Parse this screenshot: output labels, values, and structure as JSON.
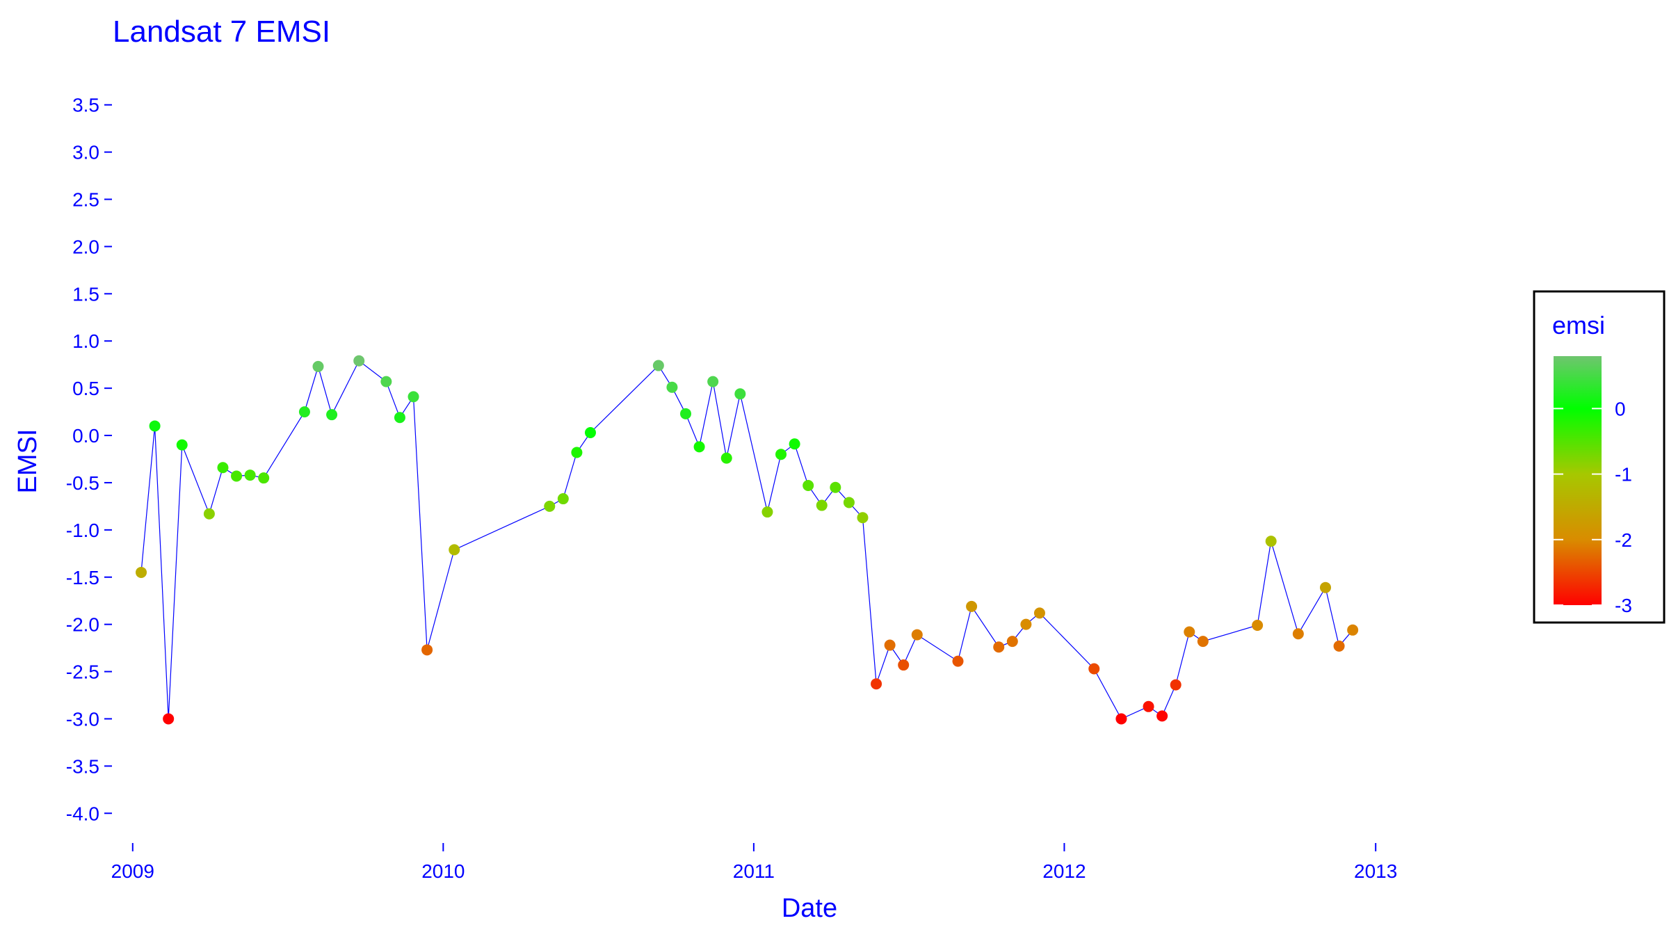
{
  "chart_data": {
    "type": "scatter",
    "title": "Landsat 7 EMSI",
    "xlabel": "Date",
    "ylabel": "EMSI",
    "x_type": "date",
    "xlim": [
      "2008-12-15",
      "2013-05-01"
    ],
    "ylim": [
      -4.3,
      3.8
    ],
    "x_ticks": [
      {
        "date": "2009-01-01",
        "label": "2009"
      },
      {
        "date": "2010-01-01",
        "label": "2010"
      },
      {
        "date": "2011-01-01",
        "label": "2011"
      },
      {
        "date": "2012-01-01",
        "label": "2012"
      },
      {
        "date": "2013-01-01",
        "label": "2013"
      }
    ],
    "y_ticks": [
      {
        "value": 3.5,
        "label": "3.5"
      },
      {
        "value": 3.0,
        "label": "3.0"
      },
      {
        "value": 2.5,
        "label": "2.5"
      },
      {
        "value": 2.0,
        "label": "2.0"
      },
      {
        "value": 1.5,
        "label": "1.5"
      },
      {
        "value": 1.0,
        "label": "1.0"
      },
      {
        "value": 0.5,
        "label": "0.5"
      },
      {
        "value": 0.0,
        "label": "0.0"
      },
      {
        "value": -0.5,
        "label": "-0.5"
      },
      {
        "value": -1.0,
        "label": "-1.0"
      },
      {
        "value": -1.5,
        "label": "-1.5"
      },
      {
        "value": -2.0,
        "label": "-2.0"
      },
      {
        "value": -2.5,
        "label": "-2.5"
      },
      {
        "value": -3.0,
        "label": "-3.0"
      },
      {
        "value": -3.5,
        "label": "-3.5"
      },
      {
        "value": -4.0,
        "label": "-4.0"
      }
    ],
    "grid": false,
    "line_color": "#0000ff",
    "series": [
      {
        "points": [
          {
            "date": "2009-01-11",
            "y": -1.45
          },
          {
            "date": "2009-01-27",
            "y": 0.1
          },
          {
            "date": "2009-02-12",
            "y": -3.0
          },
          {
            "date": "2009-02-28",
            "y": -0.1
          },
          {
            "date": "2009-04-01",
            "y": -0.83
          },
          {
            "date": "2009-04-17",
            "y": -0.34
          },
          {
            "date": "2009-05-03",
            "y": -0.43
          },
          {
            "date": "2009-05-19",
            "y": -0.42
          },
          {
            "date": "2009-06-04",
            "y": -0.45
          },
          {
            "date": "2009-07-22",
            "y": 0.25
          },
          {
            "date": "2009-08-07",
            "y": 0.73
          },
          {
            "date": "2009-08-23",
            "y": 0.22
          },
          {
            "date": "2009-09-24",
            "y": 0.79
          },
          {
            "date": "2009-10-26",
            "y": 0.57
          },
          {
            "date": "2009-11-11",
            "y": 0.19
          },
          {
            "date": "2009-11-27",
            "y": 0.41
          },
          {
            "date": "2009-12-13",
            "y": -2.27
          },
          {
            "date": "2010-01-14",
            "y": -1.21
          },
          {
            "date": "2010-05-06",
            "y": -0.75
          },
          {
            "date": "2010-05-22",
            "y": -0.67
          },
          {
            "date": "2010-06-07",
            "y": -0.18
          },
          {
            "date": "2010-06-23",
            "y": 0.03
          },
          {
            "date": "2010-09-11",
            "y": 0.74
          },
          {
            "date": "2010-09-27",
            "y": 0.51
          },
          {
            "date": "2010-10-13",
            "y": 0.23
          },
          {
            "date": "2010-10-29",
            "y": -0.12
          },
          {
            "date": "2010-11-14",
            "y": 0.57
          },
          {
            "date": "2010-11-30",
            "y": -0.24
          },
          {
            "date": "2010-12-16",
            "y": 0.44
          },
          {
            "date": "2011-01-17",
            "y": -0.81
          },
          {
            "date": "2011-02-02",
            "y": -0.2
          },
          {
            "date": "2011-02-18",
            "y": -0.09
          },
          {
            "date": "2011-03-06",
            "y": -0.53
          },
          {
            "date": "2011-03-22",
            "y": -0.74
          },
          {
            "date": "2011-04-07",
            "y": -0.55
          },
          {
            "date": "2011-04-23",
            "y": -0.71
          },
          {
            "date": "2011-05-09",
            "y": -0.87
          },
          {
            "date": "2011-05-25",
            "y": -2.63
          },
          {
            "date": "2011-06-10",
            "y": -2.22
          },
          {
            "date": "2011-06-26",
            "y": -2.43
          },
          {
            "date": "2011-07-12",
            "y": -2.11
          },
          {
            "date": "2011-08-29",
            "y": -2.39
          },
          {
            "date": "2011-09-14",
            "y": -1.81
          },
          {
            "date": "2011-10-16",
            "y": -2.24
          },
          {
            "date": "2011-11-01",
            "y": -2.18
          },
          {
            "date": "2011-11-17",
            "y": -2.0
          },
          {
            "date": "2011-12-03",
            "y": -1.88
          },
          {
            "date": "2012-02-05",
            "y": -2.47
          },
          {
            "date": "2012-03-08",
            "y": -3.0
          },
          {
            "date": "2012-04-09",
            "y": -2.87
          },
          {
            "date": "2012-04-25",
            "y": -2.97
          },
          {
            "date": "2012-05-11",
            "y": -2.64
          },
          {
            "date": "2012-05-27",
            "y": -2.08
          },
          {
            "date": "2012-06-12",
            "y": -2.18
          },
          {
            "date": "2012-08-15",
            "y": -2.01
          },
          {
            "date": "2012-08-31",
            "y": -1.12
          },
          {
            "date": "2012-10-02",
            "y": -2.1
          },
          {
            "date": "2012-11-03",
            "y": -1.61
          },
          {
            "date": "2012-11-19",
            "y": -2.23
          },
          {
            "date": "2012-12-05",
            "y": -2.06
          }
        ]
      }
    ],
    "legend": {
      "title": "emsi",
      "placement": "right",
      "range": [
        -3,
        0.8
      ],
      "ticks": [
        {
          "value": 0,
          "label": "0"
        },
        {
          "value": -1,
          "label": "-1"
        },
        {
          "value": -2,
          "label": "-2"
        },
        {
          "value": -3,
          "label": "-3"
        }
      ],
      "color_stops": [
        {
          "value": -3,
          "color": "#ff0000"
        },
        {
          "value": -2,
          "color": "#d98c00"
        },
        {
          "value": -1,
          "color": "#a6c800"
        },
        {
          "value": 0,
          "color": "#00ff00"
        },
        {
          "value": 0.8,
          "color": "#6fc56f"
        }
      ]
    }
  }
}
